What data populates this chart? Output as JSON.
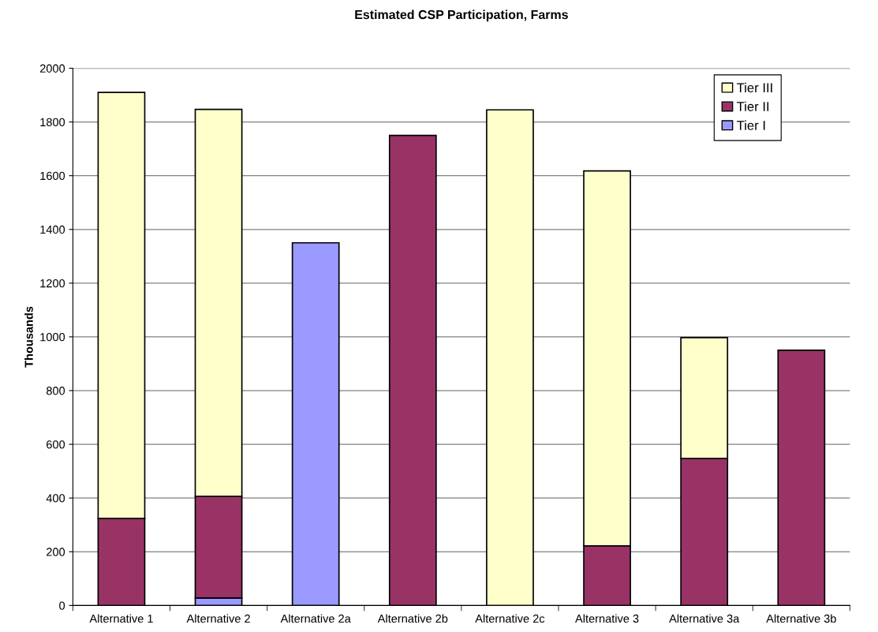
{
  "chart_data": {
    "type": "bar",
    "title": "Estimated CSP Participation, Farms",
    "ylabel": "Thousands",
    "categories": [
      "Alternative 1",
      "Alternative 2",
      "Alternative 2a",
      "Alternative 2b",
      "Alternative 2c",
      "Alternative 3",
      "Alternative 3a",
      "Alternative 3b"
    ],
    "stacked": true,
    "series": [
      {
        "name": "Tier I",
        "color": "#9999ff",
        "values": [
          0,
          28,
          1350,
          0,
          0,
          0,
          0,
          0
        ]
      },
      {
        "name": "Tier II",
        "color": "#993366",
        "values": [
          324,
          378,
          0,
          1750,
          0,
          222,
          547,
          950
        ]
      },
      {
        "name": "Tier III",
        "color": "#ffffcc",
        "values": [
          1586,
          1441,
          0,
          0,
          1845,
          1396,
          450,
          0
        ]
      }
    ],
    "ylim": [
      0,
      2000
    ],
    "yticks": [
      0,
      200,
      400,
      600,
      800,
      1000,
      1200,
      1400,
      1600,
      1800,
      2000
    ],
    "grid": "y",
    "legend": "top right"
  }
}
